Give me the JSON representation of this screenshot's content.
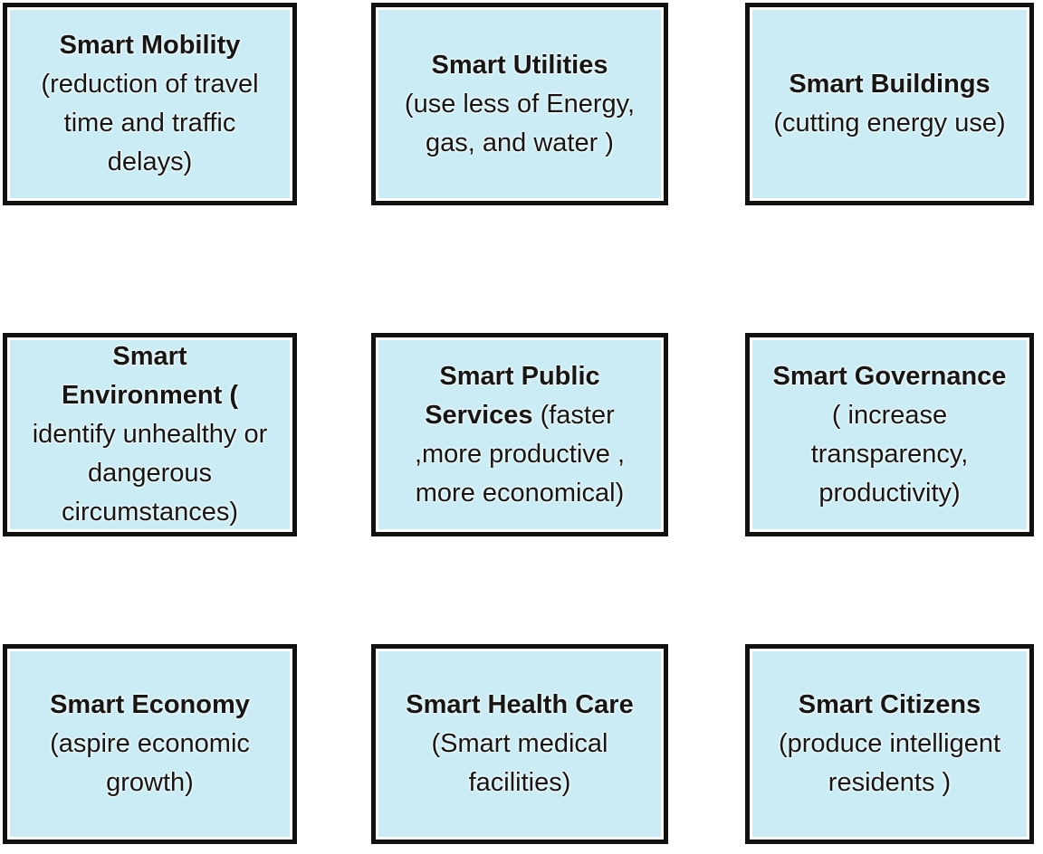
{
  "colors": {
    "box_fill": "#cbecf4",
    "box_border": "#111111",
    "box_inner_ring": "#ffffff",
    "text": "#161616",
    "page_background": "#ffffff"
  },
  "boxes": [
    {
      "name": "Smart Mobility",
      "lines": [
        [
          {
            "text": "Smart Mobility",
            "bold": true
          }
        ],
        [
          {
            "text": "(reduction of travel",
            "bold": false
          }
        ],
        [
          {
            "text": "time and traffic",
            "bold": false
          }
        ],
        [
          {
            "text": "delays)",
            "bold": false
          }
        ]
      ]
    },
    {
      "name": "Smart Utilities",
      "lines": [
        [
          {
            "text": "Smart Utilities",
            "bold": true
          }
        ],
        [
          {
            "text": "(use less of Energy,",
            "bold": false
          }
        ],
        [
          {
            "text": "gas, and water )",
            "bold": false
          }
        ]
      ]
    },
    {
      "name": "Smart Buildings",
      "lines": [
        [
          {
            "text": "Smart Buildings",
            "bold": true
          }
        ],
        [
          {
            "text": "(cutting energy use)",
            "bold": false
          }
        ]
      ]
    },
    {
      "name": "Smart Environment",
      "lines": [
        [
          {
            "text": "Smart",
            "bold": true
          }
        ],
        [
          {
            "text": "Environment (",
            "bold": true
          }
        ],
        [
          {
            "text": "identify unhealthy or",
            "bold": false
          }
        ],
        [
          {
            "text": "dangerous",
            "bold": false
          }
        ],
        [
          {
            "text": "circumstances)",
            "bold": false
          }
        ]
      ]
    },
    {
      "name": "Smart Public Services",
      "lines": [
        [
          {
            "text": "Smart Public",
            "bold": true
          }
        ],
        [
          {
            "text": "Services ",
            "bold": true
          },
          {
            "text": "(faster",
            "bold": false
          }
        ],
        [
          {
            "text": ",more productive ,",
            "bold": false
          }
        ],
        [
          {
            "text": "more economical)",
            "bold": false
          }
        ]
      ]
    },
    {
      "name": "Smart Governance",
      "lines": [
        [
          {
            "text": "Smart Governance",
            "bold": true
          }
        ],
        [
          {
            "text": "( increase",
            "bold": false
          }
        ],
        [
          {
            "text": "transparency,",
            "bold": false
          }
        ],
        [
          {
            "text": "productivity)",
            "bold": false
          }
        ]
      ]
    },
    {
      "name": "Smart Economy",
      "lines": [
        [
          {
            "text": "Smart Economy",
            "bold": true
          }
        ],
        [
          {
            "text": "(aspire economic",
            "bold": false
          }
        ],
        [
          {
            "text": "growth)",
            "bold": false
          }
        ]
      ]
    },
    {
      "name": "Smart Health Care",
      "lines": [
        [
          {
            "text": "Smart Health Care",
            "bold": true
          }
        ],
        [
          {
            "text": "(Smart medical",
            "bold": false
          }
        ],
        [
          {
            "text": "facilities)",
            "bold": false
          }
        ]
      ]
    },
    {
      "name": "Smart Citizens",
      "lines": [
        [
          {
            "text": "Smart Citizens",
            "bold": true
          }
        ],
        [
          {
            "text": "(produce intelligent",
            "bold": false
          }
        ],
        [
          {
            "text": "residents )",
            "bold": false
          }
        ]
      ]
    }
  ]
}
